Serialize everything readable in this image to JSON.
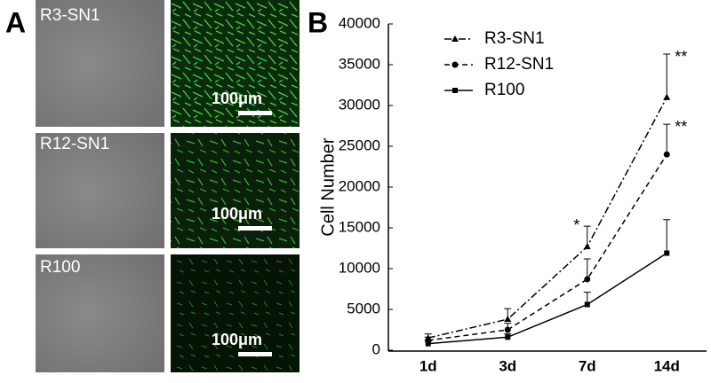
{
  "panel_a": {
    "label": "A",
    "images": [
      {
        "label": "R3-SN1",
        "scale": "100μm"
      },
      {
        "label": "R12-SN1",
        "scale": "100μm"
      },
      {
        "label": "R100",
        "scale": "100μm"
      }
    ]
  },
  "chart_data": {
    "type": "line",
    "panel_label": "B",
    "y_label": "Cell Number",
    "categories": [
      "1d",
      "3d",
      "7d",
      "14d"
    ],
    "series": [
      {
        "name": "R3-SN1",
        "color": "#000000",
        "dash": "8 3 2 3",
        "marker": "triangle",
        "values": [
          1500,
          3800,
          12700,
          31000
        ],
        "errors": [
          500,
          1300,
          2500,
          5300
        ]
      },
      {
        "name": "R12-SN1",
        "color": "#000000",
        "dash": "6 4",
        "marker": "circle",
        "values": [
          1200,
          2500,
          8700,
          24000
        ],
        "errors": [
          400,
          800,
          2500,
          3700
        ]
      },
      {
        "name": "R100",
        "color": "#000000",
        "dash": "",
        "marker": "square",
        "values": [
          800,
          1600,
          5600,
          11900
        ],
        "errors": [
          300,
          400,
          1500,
          4100
        ]
      }
    ],
    "annotations": [
      {
        "text": "*"
      },
      {
        "text": "**"
      },
      {
        "text": "**"
      }
    ],
    "ylim": [
      0,
      40000
    ],
    "yticks": [
      0,
      5000,
      10000,
      15000,
      20000,
      25000,
      30000,
      35000,
      40000
    ]
  }
}
